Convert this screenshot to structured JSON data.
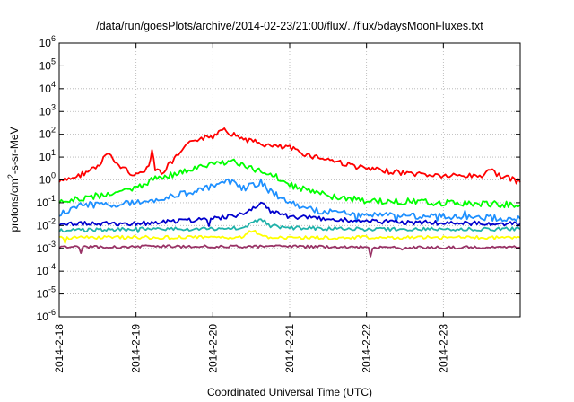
{
  "chart_data": {
    "type": "line",
    "title": "/data/run/goesPlots/archive/2014-02-23/21:00/flux/../flux/5daysMoonFluxes.txt",
    "xlabel": "Coordinated Universal Time (UTC)",
    "ylabel": "protons/cm2-s-sr-MeV",
    "yscale": "log",
    "ylim": [
      1e-06,
      1000000.0
    ],
    "xlim": [
      "2014-02-18",
      "2014-02-24"
    ],
    "x_ticks": [
      "2014-2-18",
      "2014-2-19",
      "2014-2-20",
      "2014-2-21",
      "2014-2-22",
      "2014-2-23"
    ],
    "y_ticks": [
      {
        "base": "10",
        "exp": "-6",
        "value": 1e-06
      },
      {
        "base": "10",
        "exp": "-5",
        "value": 1e-05
      },
      {
        "base": "10",
        "exp": "-4",
        "value": 0.0001
      },
      {
        "base": "10",
        "exp": "-3",
        "value": 0.001
      },
      {
        "base": "10",
        "exp": "-2",
        "value": 0.01
      },
      {
        "base": "10",
        "exp": "-1",
        "value": 0.1
      },
      {
        "base": "10",
        "exp": "0",
        "value": 1
      },
      {
        "base": "10",
        "exp": "1",
        "value": 10
      },
      {
        "base": "10",
        "exp": "2",
        "value": 100
      },
      {
        "base": "10",
        "exp": "3",
        "value": 1000
      },
      {
        "base": "10",
        "exp": "4",
        "value": 10000
      },
      {
        "base": "10",
        "exp": "5",
        "value": 100000
      },
      {
        "base": "10",
        "exp": "6",
        "value": 1000000
      }
    ],
    "grid": true,
    "legend": "none",
    "series": [
      {
        "color": "#ff0000",
        "x": [
          "2014-02-18 00:00",
          "2014-02-18 06:00",
          "2014-02-18 12:00",
          "2014-02-18 15:00",
          "2014-02-18 18:00",
          "2014-02-19 00:00",
          "2014-02-19 04:00",
          "2014-02-19 05:00",
          "2014-02-19 06:00",
          "2014-02-19 08:00",
          "2014-02-19 12:00",
          "2014-02-19 18:00",
          "2014-02-20 00:00",
          "2014-02-20 03:00",
          "2014-02-20 06:00",
          "2014-02-20 12:00",
          "2014-02-20 18:00",
          "2014-02-21 00:00",
          "2014-02-21 06:00",
          "2014-02-21 12:00",
          "2014-02-22 00:00",
          "2014-02-22 12:00",
          "2014-02-23 00:00",
          "2014-02-23 12:00",
          "2014-02-23 14:00",
          "2014-02-23 18:00",
          "2014-02-24 00:00"
        ],
        "y": [
          0.8,
          1.5,
          4,
          15,
          5,
          1.5,
          4,
          25,
          3,
          2,
          8,
          60,
          80,
          200,
          100,
          50,
          30,
          25,
          12,
          8,
          3,
          2,
          1.5,
          1.5,
          3,
          1.5,
          0.8
        ]
      },
      {
        "color": "#00ff00",
        "x": [
          "2014-02-18 00:00",
          "2014-02-18 12:00",
          "2014-02-19 00:00",
          "2014-02-19 06:00",
          "2014-02-19 12:00",
          "2014-02-20 00:00",
          "2014-02-20 06:00",
          "2014-02-20 12:00",
          "2014-02-20 18:00",
          "2014-02-21 00:00",
          "2014-02-21 06:00",
          "2014-02-21 12:00",
          "2014-02-22 00:00",
          "2014-02-23 00:00",
          "2014-02-24 00:00"
        ],
        "y": [
          0.1,
          0.2,
          0.4,
          1.2,
          1.8,
          5,
          7,
          3,
          2,
          0.6,
          0.35,
          0.2,
          0.12,
          0.1,
          0.08
        ]
      },
      {
        "color": "#1e90ff",
        "x": [
          "2014-02-18 00:00",
          "2014-02-18 06:00",
          "2014-02-18 12:00",
          "2014-02-19 00:00",
          "2014-02-19 12:00",
          "2014-02-20 00:00",
          "2014-02-20 06:00",
          "2014-02-20 09:00",
          "2014-02-20 15:00",
          "2014-02-20 18:00",
          "2014-02-21 00:00",
          "2014-02-21 06:00",
          "2014-02-21 12:00",
          "2014-02-22 00:00",
          "2014-02-23 00:00",
          "2014-02-24 00:00"
        ],
        "y": [
          0.03,
          0.08,
          0.08,
          0.1,
          0.2,
          0.5,
          0.9,
          0.4,
          0.8,
          0.3,
          0.1,
          0.05,
          0.04,
          0.03,
          0.025,
          0.02
        ]
      },
      {
        "color": "#0000cd",
        "x": [
          "2014-02-18 00:00",
          "2014-02-19 00:00",
          "2014-02-20 00:00",
          "2014-02-20 09:00",
          "2014-02-20 15:00",
          "2014-02-20 18:00",
          "2014-02-21 00:00",
          "2014-02-22 00:00",
          "2014-02-23 00:00",
          "2014-02-24 00:00"
        ],
        "y": [
          0.012,
          0.012,
          0.02,
          0.03,
          0.1,
          0.04,
          0.025,
          0.015,
          0.013,
          0.012
        ]
      },
      {
        "color": "#20b2aa",
        "x": [
          "2014-02-18 00:00",
          "2014-02-19 00:00",
          "2014-02-20 00:00",
          "2014-02-20 09:00",
          "2014-02-20 15:00",
          "2014-02-20 18:00",
          "2014-02-21 00:00",
          "2014-02-22 00:00",
          "2014-02-23 00:00",
          "2014-02-24 00:00"
        ],
        "y": [
          0.006,
          0.007,
          0.007,
          0.008,
          0.02,
          0.01,
          0.008,
          0.007,
          0.007,
          0.007
        ]
      },
      {
        "color": "#ffff00",
        "x": [
          "2014-02-18 00:00",
          "2014-02-19 00:00",
          "2014-02-20 00:00",
          "2014-02-20 09:00",
          "2014-02-20 12:00",
          "2014-02-20 18:00",
          "2014-02-21 00:00",
          "2014-02-22 00:00",
          "2014-02-23 00:00",
          "2014-02-24 00:00"
        ],
        "y": [
          0.003,
          0.003,
          0.003,
          0.003,
          0.006,
          0.003,
          0.003,
          0.003,
          0.003,
          0.003
        ]
      },
      {
        "color": "#993366",
        "x": [
          "2014-02-18 00:00",
          "2014-02-19 00:00",
          "2014-02-20 00:00",
          "2014-02-21 00:00",
          "2014-02-22 00:00",
          "2014-02-23 00:00",
          "2014-02-24 00:00"
        ],
        "y": [
          0.0011,
          0.0012,
          0.0012,
          0.0012,
          0.0011,
          0.0011,
          0.0011
        ]
      }
    ]
  }
}
